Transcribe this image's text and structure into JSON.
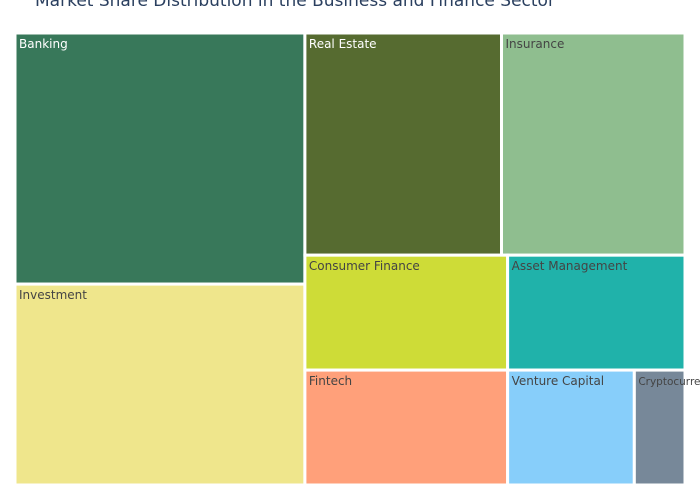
{
  "chart_data": {
    "type": "treemap",
    "title": "Market Share Distribution in the Business and Finance Sector",
    "tiles": [
      {
        "name": "Banking",
        "value": 25,
        "color": "#38785a",
        "label_color": "#ffffff"
      },
      {
        "name": "Investment",
        "value": 20,
        "color": "#efe68c",
        "label_color": "#444444"
      },
      {
        "name": "Real Estate",
        "value": 15,
        "color": "#566b30",
        "label_color": "#ffffff"
      },
      {
        "name": "Insurance",
        "value": 14,
        "color": "#8fbe8f",
        "label_color": "#444444"
      },
      {
        "name": "Consumer Finance",
        "value": 8,
        "color": "#cedc37",
        "label_color": "#444444"
      },
      {
        "name": "Fintech",
        "value": 8,
        "color": "#ffa07a",
        "label_color": "#444444"
      },
      {
        "name": "Asset Management",
        "value": 7,
        "color": "#20b2aa",
        "label_color": "#444444"
      },
      {
        "name": "Venture Capital",
        "value": 5,
        "color": "#87cefa",
        "label_color": "#444444"
      },
      {
        "name": "Cryptocurrency",
        "value": 2,
        "color": "#778899",
        "label_color": "#444444"
      }
    ]
  }
}
